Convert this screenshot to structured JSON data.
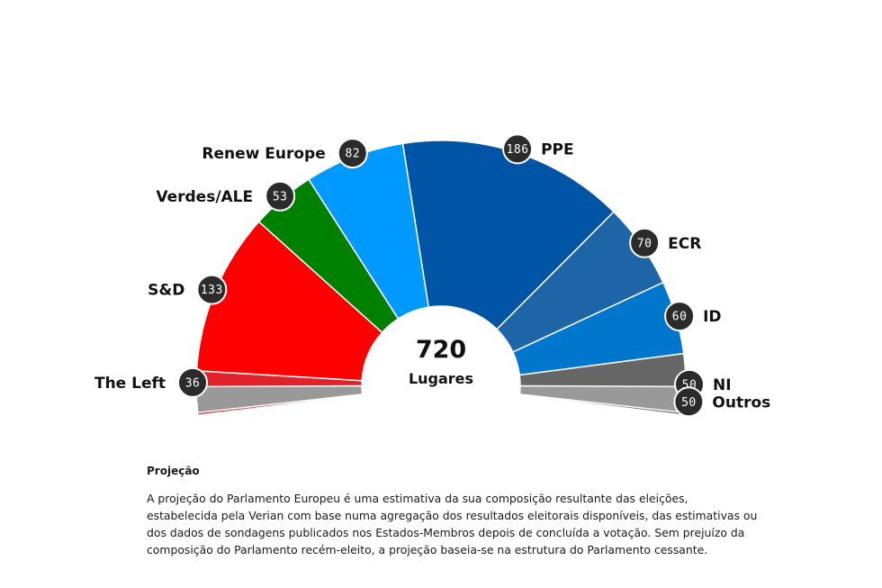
{
  "chart_data": {
    "type": "pie",
    "layout": "parliament-semicircle",
    "total": {
      "value": "720",
      "label": "Lugares"
    },
    "slices": [
      {
        "name": "The Left",
        "value": 36,
        "color": "#e2222a"
      },
      {
        "name": "S&D",
        "value": 133,
        "color": "#ff0000"
      },
      {
        "name": "Verdes/ALE",
        "value": 53,
        "color": "#008000"
      },
      {
        "name": "Renew Europe",
        "value": 82,
        "color": "#0099ff"
      },
      {
        "name": "PPE",
        "value": 186,
        "color": "#0054a5"
      },
      {
        "name": "ECR",
        "value": 70,
        "color": "#1d65a6"
      },
      {
        "name": "ID",
        "value": 60,
        "color": "#0077cc"
      },
      {
        "name": "NI",
        "value": 50,
        "color": "#666666"
      }
    ],
    "extra_slice": {
      "name": "Outros",
      "value": 50,
      "color": "#999999"
    },
    "badge_color": "#2b2b2b"
  },
  "note": {
    "title": "Projeção",
    "body": "A projeção do Parlamento Europeu é uma estimativa da sua composição resultante das eleições, estabelecida pela Verian com base numa agregação dos resultados eleitorais disponíveis, das estimativas ou dos dados de sondagens publicados nos Estados-Membros depois de concluída a votação. Sem prejuízo da composição do Parlamento recém-eleito, a projeção baseia-se na estrutura do Parlamento cessante."
  }
}
